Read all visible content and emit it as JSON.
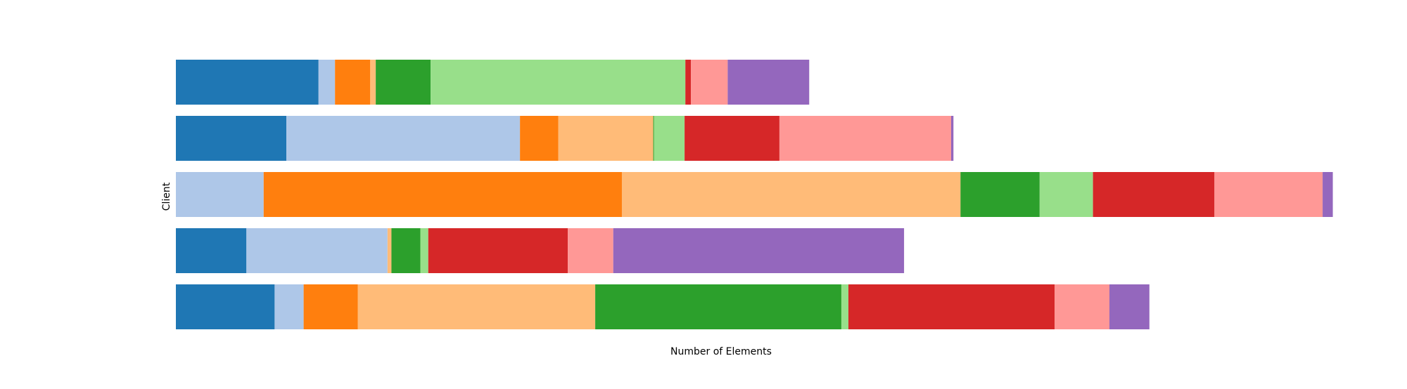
{
  "chart_data": {
    "type": "bar",
    "orientation": "horizontal",
    "stacked": true,
    "title": "",
    "xlabel": "Number of Elements",
    "ylabel": "Client",
    "xlim": [
      0,
      1550
    ],
    "grid": false,
    "axes_visible": false,
    "legend": "none",
    "palette": [
      "#1f77b4",
      "#aec7e8",
      "#ff7f0e",
      "#ffbb78",
      "#2ca02c",
      "#98df8a",
      "#d62728",
      "#ff9896",
      "#9467bd",
      "#c5b0d5"
    ],
    "rows": [
      {
        "segments": [
          182,
          21,
          45,
          7,
          70,
          325,
          7,
          47,
          104
        ]
      },
      {
        "segments": [
          141,
          298,
          49,
          121,
          1,
          39,
          121,
          219,
          3
        ]
      },
      {
        "segments": [
          0,
          112,
          457,
          432,
          101,
          68,
          155,
          138,
          13
        ]
      },
      {
        "segments": [
          90,
          180,
          0,
          5,
          37,
          10,
          178,
          58,
          371
        ]
      },
      {
        "segments": [
          126,
          37,
          69,
          303,
          314,
          9,
          263,
          70,
          51
        ]
      }
    ]
  }
}
